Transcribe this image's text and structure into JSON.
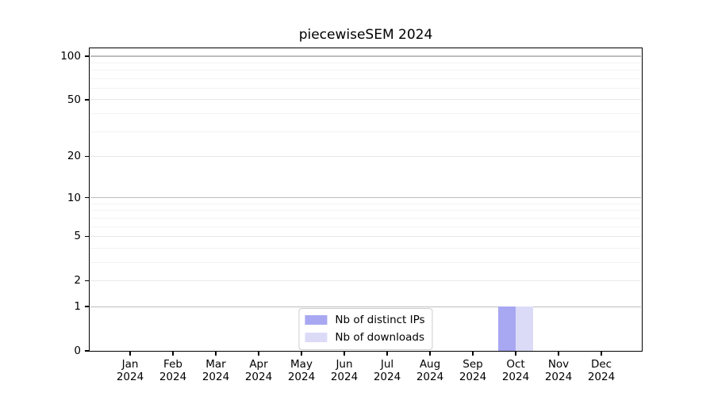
{
  "title": "piecewiseSEM 2024",
  "colors": {
    "background": "#ffffff",
    "axis": "#000000",
    "grid_major": "#bdbdbd",
    "grid_mid": "#e8e8e8",
    "grid_minor": "#f3f3f3",
    "legend_border": "#cccccc",
    "distinct_ips_bar": "#a7a7f2",
    "downloads_bar": "#dbdbf8"
  },
  "chart_data": {
    "type": "bar",
    "title": "piecewiseSEM 2024",
    "categories": [
      "Jan",
      "Feb",
      "Mar",
      "Apr",
      "May",
      "Jun",
      "Jul",
      "Aug",
      "Sep",
      "Oct",
      "Nov",
      "Dec"
    ],
    "x_year_label": "2024",
    "series": [
      {
        "name": "Nb of distinct IPs",
        "color": "#a7a7f2",
        "values": [
          0,
          0,
          0,
          0,
          0,
          0,
          0,
          0,
          0,
          1,
          0,
          0
        ]
      },
      {
        "name": "Nb of downloads",
        "color": "#dbdbf8",
        "values": [
          0,
          0,
          0,
          0,
          0,
          0,
          0,
          0,
          0,
          1,
          0,
          0
        ]
      }
    ],
    "yscale": "log1p",
    "ylim": [
      0,
      113
    ],
    "yticks": [
      0,
      1,
      2,
      5,
      10,
      20,
      50,
      100
    ],
    "gridlines": {
      "major": [
        1,
        10,
        100
      ],
      "mid": [
        2,
        5,
        20,
        50
      ],
      "minor": [
        3,
        4,
        6,
        7,
        8,
        9,
        30,
        40,
        60,
        70,
        80,
        90
      ]
    },
    "grid": "horizontal",
    "legend_position": "lower center"
  }
}
